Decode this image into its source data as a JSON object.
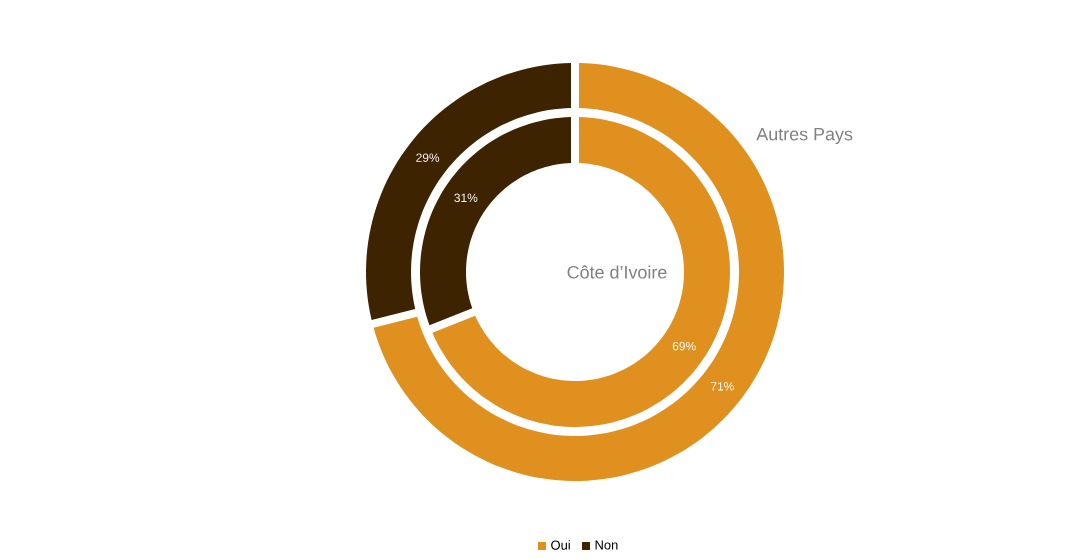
{
  "chart_data": {
    "type": "donut",
    "categories": [
      "Oui",
      "Non"
    ],
    "colors": [
      "#e0901e",
      "#3d2300"
    ],
    "series": [
      {
        "name": "Autres Pays",
        "values": [
          71,
          29
        ],
        "value_labels": [
          "71%",
          "29%"
        ]
      },
      {
        "name": "Côte d’Ivoire",
        "values": [
          69,
          31
        ],
        "value_labels": [
          "69%",
          "31%"
        ]
      }
    ],
    "legend": "bottom"
  }
}
